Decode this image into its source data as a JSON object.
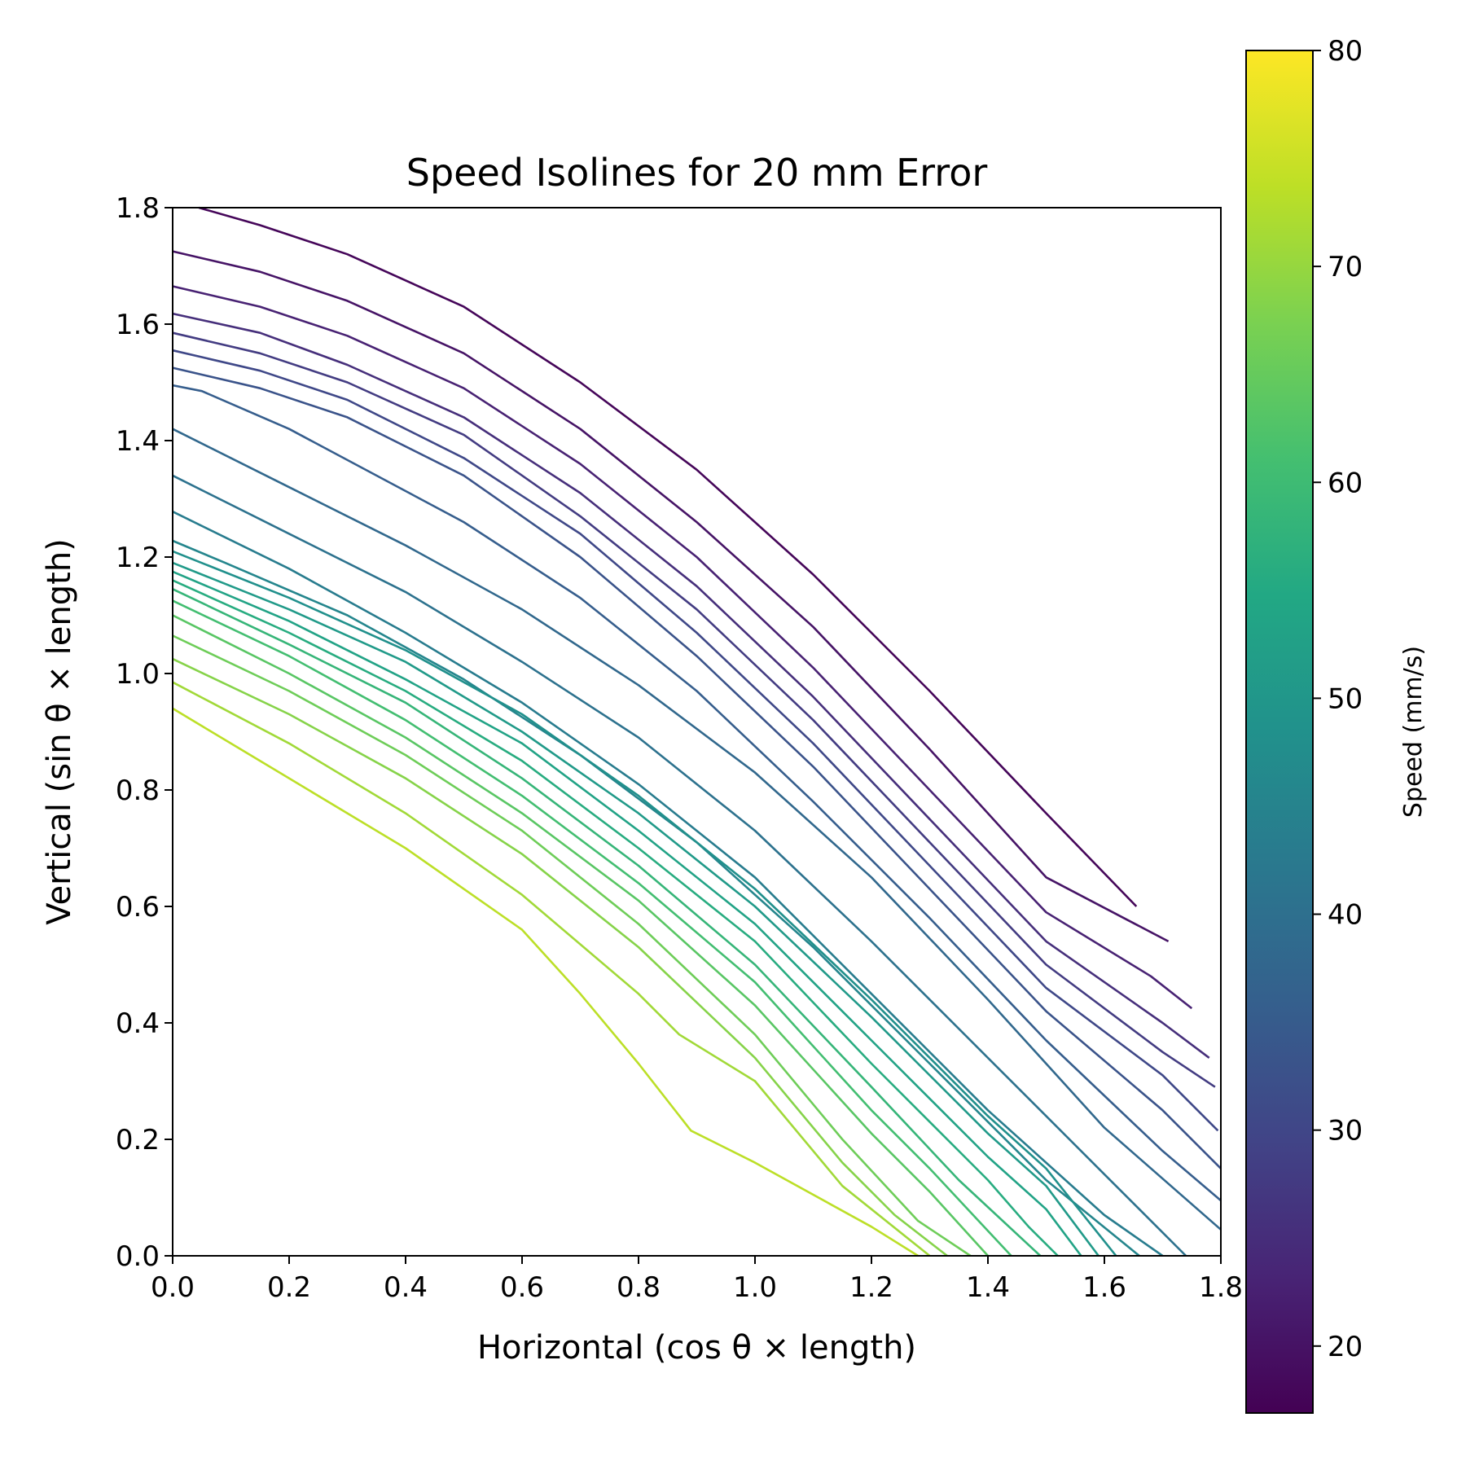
{
  "chart_data": {
    "type": "contour",
    "title": "Speed Isolines for 20 mm Error",
    "xlabel": "Horizontal (cos θ × length)",
    "ylabel": "Vertical (sin θ × length)",
    "xlim": [
      0.0,
      1.8
    ],
    "ylim": [
      0.0,
      1.8
    ],
    "xticks": [
      0.0,
      0.2,
      0.4,
      0.6,
      0.8,
      1.0,
      1.2,
      1.4,
      1.6,
      1.8
    ],
    "xtick_labels": [
      "0.0",
      "0.2",
      "0.4",
      "0.6",
      "0.8",
      "1.0",
      "1.2",
      "1.4",
      "1.6",
      "1.8"
    ],
    "yticks": [
      0.0,
      0.2,
      0.4,
      0.6,
      0.8,
      1.0,
      1.2,
      1.4,
      1.6,
      1.8
    ],
    "ytick_labels": [
      "0.0",
      "0.2",
      "0.4",
      "0.6",
      "0.8",
      "1.0",
      "1.2",
      "1.4",
      "1.6",
      "1.8"
    ],
    "grid": false,
    "colormap": "viridis",
    "colorbar": {
      "label": "Speed (mm/s)",
      "range": [
        16.9,
        80.0
      ],
      "ticks": [
        20,
        30,
        40,
        50,
        60,
        70,
        80
      ],
      "tick_labels": [
        "20",
        "30",
        "40",
        "50",
        "60",
        "70",
        "80"
      ]
    },
    "isolines": [
      {
        "level": 17.8,
        "points": [
          [
            0.045,
            1.8
          ],
          [
            0.15,
            1.77
          ],
          [
            0.3,
            1.72
          ],
          [
            0.5,
            1.63
          ],
          [
            0.7,
            1.5
          ],
          [
            0.9,
            1.35
          ],
          [
            1.1,
            1.17
          ],
          [
            1.3,
            0.97
          ],
          [
            1.5,
            0.76
          ],
          [
            1.655,
            0.6
          ]
        ]
      },
      {
        "level": 20.3,
        "points": [
          [
            0.0,
            1.725
          ],
          [
            0.15,
            1.69
          ],
          [
            0.3,
            1.64
          ],
          [
            0.5,
            1.55
          ],
          [
            0.7,
            1.42
          ],
          [
            0.9,
            1.26
          ],
          [
            1.1,
            1.08
          ],
          [
            1.3,
            0.87
          ],
          [
            1.5,
            0.65
          ],
          [
            1.71,
            0.54
          ]
        ]
      },
      {
        "level": 22.9,
        "points": [
          [
            0.0,
            1.665
          ],
          [
            0.15,
            1.63
          ],
          [
            0.3,
            1.58
          ],
          [
            0.5,
            1.49
          ],
          [
            0.7,
            1.36
          ],
          [
            0.9,
            1.2
          ],
          [
            1.1,
            1.01
          ],
          [
            1.3,
            0.8
          ],
          [
            1.5,
            0.59
          ],
          [
            1.68,
            0.48
          ],
          [
            1.75,
            0.425
          ]
        ]
      },
      {
        "level": 25.4,
        "points": [
          [
            0.0,
            1.618
          ],
          [
            0.15,
            1.585
          ],
          [
            0.3,
            1.53
          ],
          [
            0.5,
            1.44
          ],
          [
            0.7,
            1.31
          ],
          [
            0.9,
            1.15
          ],
          [
            1.1,
            0.96
          ],
          [
            1.3,
            0.75
          ],
          [
            1.5,
            0.54
          ],
          [
            1.7,
            0.4
          ],
          [
            1.78,
            0.34
          ]
        ]
      },
      {
        "level": 27.9,
        "points": [
          [
            0.0,
            1.585
          ],
          [
            0.15,
            1.55
          ],
          [
            0.3,
            1.5
          ],
          [
            0.5,
            1.41
          ],
          [
            0.7,
            1.27
          ],
          [
            0.9,
            1.11
          ],
          [
            1.1,
            0.92
          ],
          [
            1.3,
            0.71
          ],
          [
            1.5,
            0.5
          ],
          [
            1.7,
            0.35
          ],
          [
            1.79,
            0.29
          ]
        ]
      },
      {
        "level": 30.5,
        "points": [
          [
            0.0,
            1.555
          ],
          [
            0.15,
            1.52
          ],
          [
            0.3,
            1.47
          ],
          [
            0.5,
            1.37
          ],
          [
            0.7,
            1.24
          ],
          [
            0.9,
            1.07
          ],
          [
            1.1,
            0.88
          ],
          [
            1.3,
            0.67
          ],
          [
            1.5,
            0.46
          ],
          [
            1.7,
            0.31
          ],
          [
            1.795,
            0.215
          ]
        ]
      },
      {
        "level": 33.0,
        "points": [
          [
            0.0,
            1.525
          ],
          [
            0.15,
            1.49
          ],
          [
            0.3,
            1.44
          ],
          [
            0.5,
            1.34
          ],
          [
            0.7,
            1.2
          ],
          [
            0.9,
            1.03
          ],
          [
            1.1,
            0.84
          ],
          [
            1.3,
            0.63
          ],
          [
            1.5,
            0.42
          ],
          [
            1.7,
            0.25
          ],
          [
            1.8,
            0.15
          ]
        ]
      },
      {
        "level": 35.5,
        "points": [
          [
            0.0,
            1.495
          ],
          [
            0.05,
            1.485
          ],
          [
            0.2,
            1.42
          ],
          [
            0.5,
            1.26
          ],
          [
            0.7,
            1.13
          ],
          [
            0.9,
            0.97
          ],
          [
            1.1,
            0.78
          ],
          [
            1.3,
            0.58
          ],
          [
            1.5,
            0.37
          ],
          [
            1.7,
            0.18
          ],
          [
            1.8,
            0.095
          ]
        ]
      },
      {
        "level": 38.1,
        "points": [
          [
            0.0,
            1.42
          ],
          [
            0.2,
            1.32
          ],
          [
            0.4,
            1.22
          ],
          [
            0.6,
            1.11
          ],
          [
            0.8,
            0.98
          ],
          [
            1.0,
            0.83
          ],
          [
            1.2,
            0.65
          ],
          [
            1.4,
            0.44
          ],
          [
            1.6,
            0.22
          ],
          [
            1.8,
            0.045
          ]
        ]
      },
      {
        "level": 40.6,
        "points": [
          [
            0.0,
            1.34
          ],
          [
            0.2,
            1.24
          ],
          [
            0.4,
            1.14
          ],
          [
            0.6,
            1.02
          ],
          [
            0.8,
            0.89
          ],
          [
            1.0,
            0.73
          ],
          [
            1.2,
            0.54
          ],
          [
            1.4,
            0.34
          ],
          [
            1.6,
            0.14
          ],
          [
            1.74,
            0.0
          ]
        ]
      },
      {
        "level": 43.2,
        "points": [
          [
            0.0,
            1.278
          ],
          [
            0.2,
            1.18
          ],
          [
            0.4,
            1.07
          ],
          [
            0.6,
            0.95
          ],
          [
            0.8,
            0.81
          ],
          [
            1.0,
            0.65
          ],
          [
            1.2,
            0.45
          ],
          [
            1.4,
            0.25
          ],
          [
            1.6,
            0.07
          ],
          [
            1.7,
            0.0
          ]
        ]
      },
      {
        "level": 45.7,
        "points": [
          [
            0.0,
            1.228
          ],
          [
            0.09,
            1.19
          ],
          [
            0.3,
            1.1
          ],
          [
            0.5,
            0.99
          ],
          [
            0.7,
            0.86
          ],
          [
            0.9,
            0.71
          ],
          [
            1.1,
            0.53
          ],
          [
            1.3,
            0.33
          ],
          [
            1.5,
            0.13
          ],
          [
            1.66,
            0.0
          ]
        ]
      },
      {
        "level": 48.2,
        "points": [
          [
            0.0,
            1.21
          ],
          [
            0.2,
            1.13
          ],
          [
            0.4,
            1.04
          ],
          [
            0.6,
            0.93
          ],
          [
            0.8,
            0.79
          ],
          [
            1.0,
            0.63
          ],
          [
            1.2,
            0.44
          ],
          [
            1.4,
            0.24
          ],
          [
            1.5,
            0.15
          ],
          [
            1.62,
            0.0
          ]
        ]
      },
      {
        "level": 50.8,
        "points": [
          [
            0.0,
            1.19
          ],
          [
            0.2,
            1.11
          ],
          [
            0.4,
            1.02
          ],
          [
            0.6,
            0.9
          ],
          [
            0.8,
            0.76
          ],
          [
            1.0,
            0.6
          ],
          [
            1.2,
            0.41
          ],
          [
            1.4,
            0.21
          ],
          [
            1.5,
            0.12
          ],
          [
            1.59,
            0.0
          ]
        ]
      },
      {
        "level": 53.3,
        "points": [
          [
            0.0,
            1.175
          ],
          [
            0.2,
            1.09
          ],
          [
            0.4,
            0.99
          ],
          [
            0.6,
            0.88
          ],
          [
            0.8,
            0.73
          ],
          [
            1.0,
            0.57
          ],
          [
            1.2,
            0.37
          ],
          [
            1.4,
            0.17
          ],
          [
            1.5,
            0.08
          ],
          [
            1.56,
            0.0
          ]
        ]
      },
      {
        "level": 55.9,
        "points": [
          [
            0.0,
            1.16
          ],
          [
            0.2,
            1.07
          ],
          [
            0.4,
            0.97
          ],
          [
            0.6,
            0.85
          ],
          [
            0.8,
            0.7
          ],
          [
            1.0,
            0.54
          ],
          [
            1.2,
            0.33
          ],
          [
            1.4,
            0.13
          ],
          [
            1.47,
            0.05
          ],
          [
            1.52,
            0.0
          ]
        ]
      },
      {
        "level": 58.4,
        "points": [
          [
            0.0,
            1.145
          ],
          [
            0.2,
            1.05
          ],
          [
            0.4,
            0.95
          ],
          [
            0.6,
            0.82
          ],
          [
            0.8,
            0.67
          ],
          [
            1.0,
            0.5
          ],
          [
            1.2,
            0.29
          ],
          [
            1.35,
            0.13
          ],
          [
            1.49,
            0.0
          ]
        ]
      },
      {
        "level": 60.9,
        "points": [
          [
            0.0,
            1.125
          ],
          [
            0.2,
            1.03
          ],
          [
            0.4,
            0.92
          ],
          [
            0.6,
            0.79
          ],
          [
            0.8,
            0.64
          ],
          [
            1.0,
            0.47
          ],
          [
            1.2,
            0.25
          ],
          [
            1.3,
            0.15
          ],
          [
            1.44,
            0.0
          ]
        ]
      },
      {
        "level": 63.5,
        "points": [
          [
            0.0,
            1.1
          ],
          [
            0.2,
            1.0
          ],
          [
            0.4,
            0.89
          ],
          [
            0.6,
            0.76
          ],
          [
            0.8,
            0.61
          ],
          [
            1.0,
            0.43
          ],
          [
            1.2,
            0.21
          ],
          [
            1.3,
            0.11
          ],
          [
            1.4,
            0.0
          ]
        ]
      },
      {
        "level": 66.0,
        "points": [
          [
            0.0,
            1.065
          ],
          [
            0.2,
            0.97
          ],
          [
            0.4,
            0.86
          ],
          [
            0.6,
            0.73
          ],
          [
            0.8,
            0.57
          ],
          [
            1.0,
            0.38
          ],
          [
            1.15,
            0.2
          ],
          [
            1.28,
            0.06
          ],
          [
            1.37,
            0.0
          ]
        ]
      },
      {
        "level": 68.5,
        "points": [
          [
            0.0,
            1.025
          ],
          [
            0.2,
            0.93
          ],
          [
            0.4,
            0.82
          ],
          [
            0.6,
            0.69
          ],
          [
            0.8,
            0.53
          ],
          [
            1.0,
            0.34
          ],
          [
            1.15,
            0.16
          ],
          [
            1.24,
            0.07
          ],
          [
            1.33,
            0.0
          ]
        ]
      },
      {
        "level": 71.1,
        "points": [
          [
            0.0,
            0.985
          ],
          [
            0.2,
            0.88
          ],
          [
            0.4,
            0.76
          ],
          [
            0.6,
            0.62
          ],
          [
            0.8,
            0.45
          ],
          [
            0.87,
            0.38
          ],
          [
            1.0,
            0.3
          ],
          [
            1.15,
            0.12
          ],
          [
            1.3,
            0.0
          ]
        ]
      },
      {
        "level": 73.6,
        "points": [
          [
            0.0,
            0.94
          ],
          [
            0.05,
            0.91
          ],
          [
            0.15,
            0.85
          ],
          [
            0.4,
            0.7
          ],
          [
            0.6,
            0.56
          ],
          [
            0.7,
            0.45
          ],
          [
            0.8,
            0.33
          ],
          [
            0.89,
            0.215
          ],
          [
            1.0,
            0.16
          ],
          [
            1.2,
            0.05
          ],
          [
            1.28,
            0.0
          ]
        ]
      }
    ]
  }
}
